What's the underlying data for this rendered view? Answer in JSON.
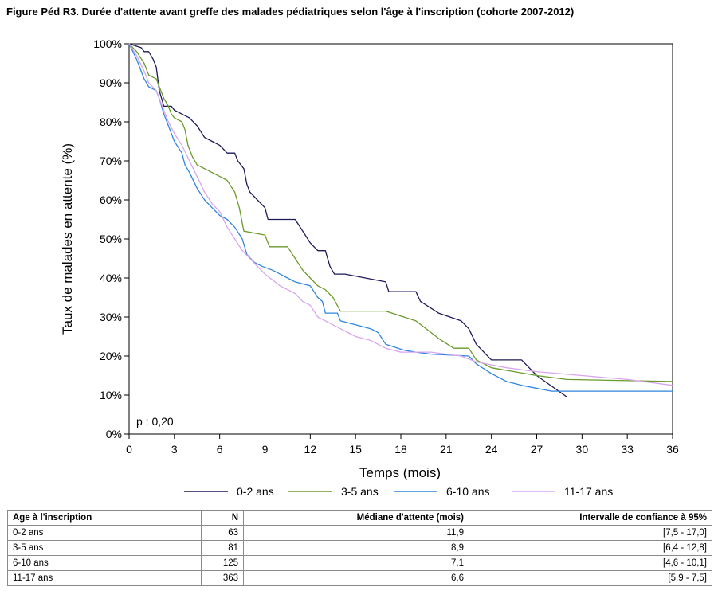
{
  "figure_title": "Figure Péd R3. Durée d'attente avant greffe des malades pédiatriques selon l'âge à l'inscription (cohorte 2007-2012)",
  "colors": {
    "0-2 ans": "#1c1a5a",
    "3-5 ans": "#6a9a2a",
    "6-10 ans": "#2f86e0",
    "11-17 ans": "#d7a6ee"
  },
  "chart_data": {
    "type": "line",
    "step": true,
    "xlabel": "Temps (mois)",
    "ylabel": "Taux de malades en attente (%)",
    "xlim": [
      0,
      36
    ],
    "ylim": [
      0,
      100
    ],
    "xticks": [
      "0",
      "3",
      "6",
      "9",
      "12",
      "15",
      "18",
      "21",
      "24",
      "27",
      "30",
      "33",
      "36"
    ],
    "yticks": [
      "0%",
      "10%",
      "20%",
      "30%",
      "40%",
      "50%",
      "60%",
      "70%",
      "80%",
      "90%",
      "100%"
    ],
    "legend_position": "bottom",
    "annotation": "p : 0,20",
    "series": [
      {
        "name": "0-2 ans",
        "points": [
          [
            0,
            100
          ],
          [
            0.8,
            99
          ],
          [
            1,
            98
          ],
          [
            1.3,
            98
          ],
          [
            1.6,
            96
          ],
          [
            1.8,
            94
          ],
          [
            2,
            88
          ],
          [
            2.3,
            84
          ],
          [
            2.8,
            84
          ],
          [
            3,
            83
          ],
          [
            3.5,
            82
          ],
          [
            4,
            81
          ],
          [
            4.5,
            79
          ],
          [
            5,
            76
          ],
          [
            5.5,
            75
          ],
          [
            6,
            74
          ],
          [
            6.5,
            72
          ],
          [
            7,
            72
          ],
          [
            7.2,
            70
          ],
          [
            7.6,
            68
          ],
          [
            7.8,
            64
          ],
          [
            8,
            62
          ],
          [
            8.5,
            60
          ],
          [
            9,
            58
          ],
          [
            9.2,
            55
          ],
          [
            11,
            55
          ],
          [
            11.5,
            52
          ],
          [
            12,
            49
          ],
          [
            12.5,
            47
          ],
          [
            13,
            47
          ],
          [
            13.3,
            43
          ],
          [
            13.6,
            41
          ],
          [
            14.3,
            41
          ],
          [
            17,
            39
          ],
          [
            17.2,
            36.5
          ],
          [
            19,
            36.5
          ],
          [
            19.3,
            34
          ],
          [
            20.5,
            31
          ],
          [
            22,
            29
          ],
          [
            22.5,
            27
          ],
          [
            23,
            23
          ],
          [
            24,
            19
          ],
          [
            26,
            19
          ],
          [
            26.5,
            17
          ],
          [
            27,
            15
          ],
          [
            29,
            9.5
          ]
        ]
      },
      {
        "name": "3-5 ans",
        "points": [
          [
            0,
            100
          ],
          [
            0.5,
            98
          ],
          [
            1,
            95
          ],
          [
            1.3,
            92
          ],
          [
            1.8,
            91
          ],
          [
            2,
            89
          ],
          [
            2.3,
            86
          ],
          [
            2.6,
            84
          ],
          [
            2.8,
            82
          ],
          [
            3,
            81
          ],
          [
            3.5,
            80
          ],
          [
            3.7,
            78
          ],
          [
            3.9,
            74
          ],
          [
            4.2,
            71
          ],
          [
            4.5,
            69
          ],
          [
            5,
            68
          ],
          [
            5.5,
            67
          ],
          [
            6,
            66
          ],
          [
            6.5,
            65
          ],
          [
            7,
            62
          ],
          [
            7.3,
            58
          ],
          [
            7.6,
            52
          ],
          [
            9,
            51
          ],
          [
            9.3,
            48
          ],
          [
            10.5,
            48
          ],
          [
            11,
            45
          ],
          [
            11.5,
            42
          ],
          [
            12,
            40
          ],
          [
            12.5,
            38
          ],
          [
            13,
            37
          ],
          [
            13.5,
            35
          ],
          [
            14,
            31.5
          ],
          [
            17,
            31.5
          ],
          [
            19,
            29
          ],
          [
            20.5,
            24.5
          ],
          [
            21.5,
            22
          ],
          [
            22.5,
            22
          ],
          [
            23,
            19
          ],
          [
            24,
            17
          ],
          [
            27,
            15
          ],
          [
            29,
            14
          ],
          [
            36,
            13.5
          ]
        ]
      },
      {
        "name": "6-10 ans",
        "points": [
          [
            0,
            100
          ],
          [
            0.5,
            96
          ],
          [
            1,
            91
          ],
          [
            1.3,
            89
          ],
          [
            1.8,
            88
          ],
          [
            2,
            86
          ],
          [
            2.3,
            82
          ],
          [
            2.6,
            79
          ],
          [
            3,
            75
          ],
          [
            3.5,
            72
          ],
          [
            3.7,
            69
          ],
          [
            4,
            67
          ],
          [
            4.5,
            63
          ],
          [
            5,
            60
          ],
          [
            5.5,
            58
          ],
          [
            6,
            56
          ],
          [
            6.5,
            55
          ],
          [
            7,
            53
          ],
          [
            7.5,
            50
          ],
          [
            7.8,
            46
          ],
          [
            8.3,
            44
          ],
          [
            8.8,
            43
          ],
          [
            9.5,
            42
          ],
          [
            10,
            41
          ],
          [
            10.5,
            40
          ],
          [
            11,
            39
          ],
          [
            12,
            38
          ],
          [
            12.5,
            35
          ],
          [
            12.8,
            34
          ],
          [
            13,
            31
          ],
          [
            13.8,
            31
          ],
          [
            14,
            29
          ],
          [
            15,
            28
          ],
          [
            16,
            27
          ],
          [
            16.5,
            26
          ],
          [
            17,
            23
          ],
          [
            18.2,
            21.5
          ],
          [
            19,
            21
          ],
          [
            20,
            20.5
          ],
          [
            22.5,
            20
          ],
          [
            23,
            18
          ],
          [
            24,
            15.5
          ],
          [
            25,
            13.5
          ],
          [
            26,
            12.5
          ],
          [
            28,
            11
          ],
          [
            36,
            11
          ]
        ]
      },
      {
        "name": "11-17 ans",
        "points": [
          [
            0,
            100
          ],
          [
            0.5,
            97
          ],
          [
            1,
            93
          ],
          [
            1.3,
            90
          ],
          [
            1.8,
            88
          ],
          [
            2,
            86
          ],
          [
            2.3,
            83
          ],
          [
            2.6,
            80
          ],
          [
            3,
            77
          ],
          [
            3.5,
            74
          ],
          [
            4,
            70
          ],
          [
            4.5,
            66
          ],
          [
            5,
            62
          ],
          [
            5.5,
            59
          ],
          [
            6,
            57
          ],
          [
            6.5,
            53
          ],
          [
            7,
            50
          ],
          [
            7.5,
            47
          ],
          [
            8,
            45
          ],
          [
            8.5,
            43
          ],
          [
            9,
            41
          ],
          [
            10,
            38
          ],
          [
            11,
            36
          ],
          [
            11.5,
            34
          ],
          [
            12,
            33
          ],
          [
            12.5,
            30
          ],
          [
            13,
            29
          ],
          [
            14,
            27
          ],
          [
            15,
            25
          ],
          [
            16,
            24
          ],
          [
            17,
            22
          ],
          [
            18,
            21
          ],
          [
            20,
            21
          ],
          [
            21,
            20.5
          ],
          [
            22,
            20
          ],
          [
            23,
            18.5
          ],
          [
            25,
            17
          ],
          [
            27,
            16
          ],
          [
            30,
            15
          ],
          [
            33,
            14
          ],
          [
            35,
            13
          ],
          [
            36,
            12.5
          ]
        ]
      }
    ]
  },
  "table": {
    "headers": {
      "age": "Age à l'inscription",
      "n": "N",
      "median": "Médiane d'attente (mois)",
      "ci": "Intervalle de confiance à 95%"
    },
    "rows": [
      {
        "age": "0-2 ans",
        "n": "63",
        "median": "11,9",
        "ci": "[7,5 - 17,0]"
      },
      {
        "age": "3-5 ans",
        "n": "81",
        "median": "8,9",
        "ci": "[6,4 - 12,8]"
      },
      {
        "age": "6-10 ans",
        "n": "125",
        "median": "7,1",
        "ci": "[4,6 - 10,1]"
      },
      {
        "age": "11-17 ans",
        "n": "363",
        "median": "6,6",
        "ci": "[5,9 - 7,5]"
      }
    ]
  }
}
